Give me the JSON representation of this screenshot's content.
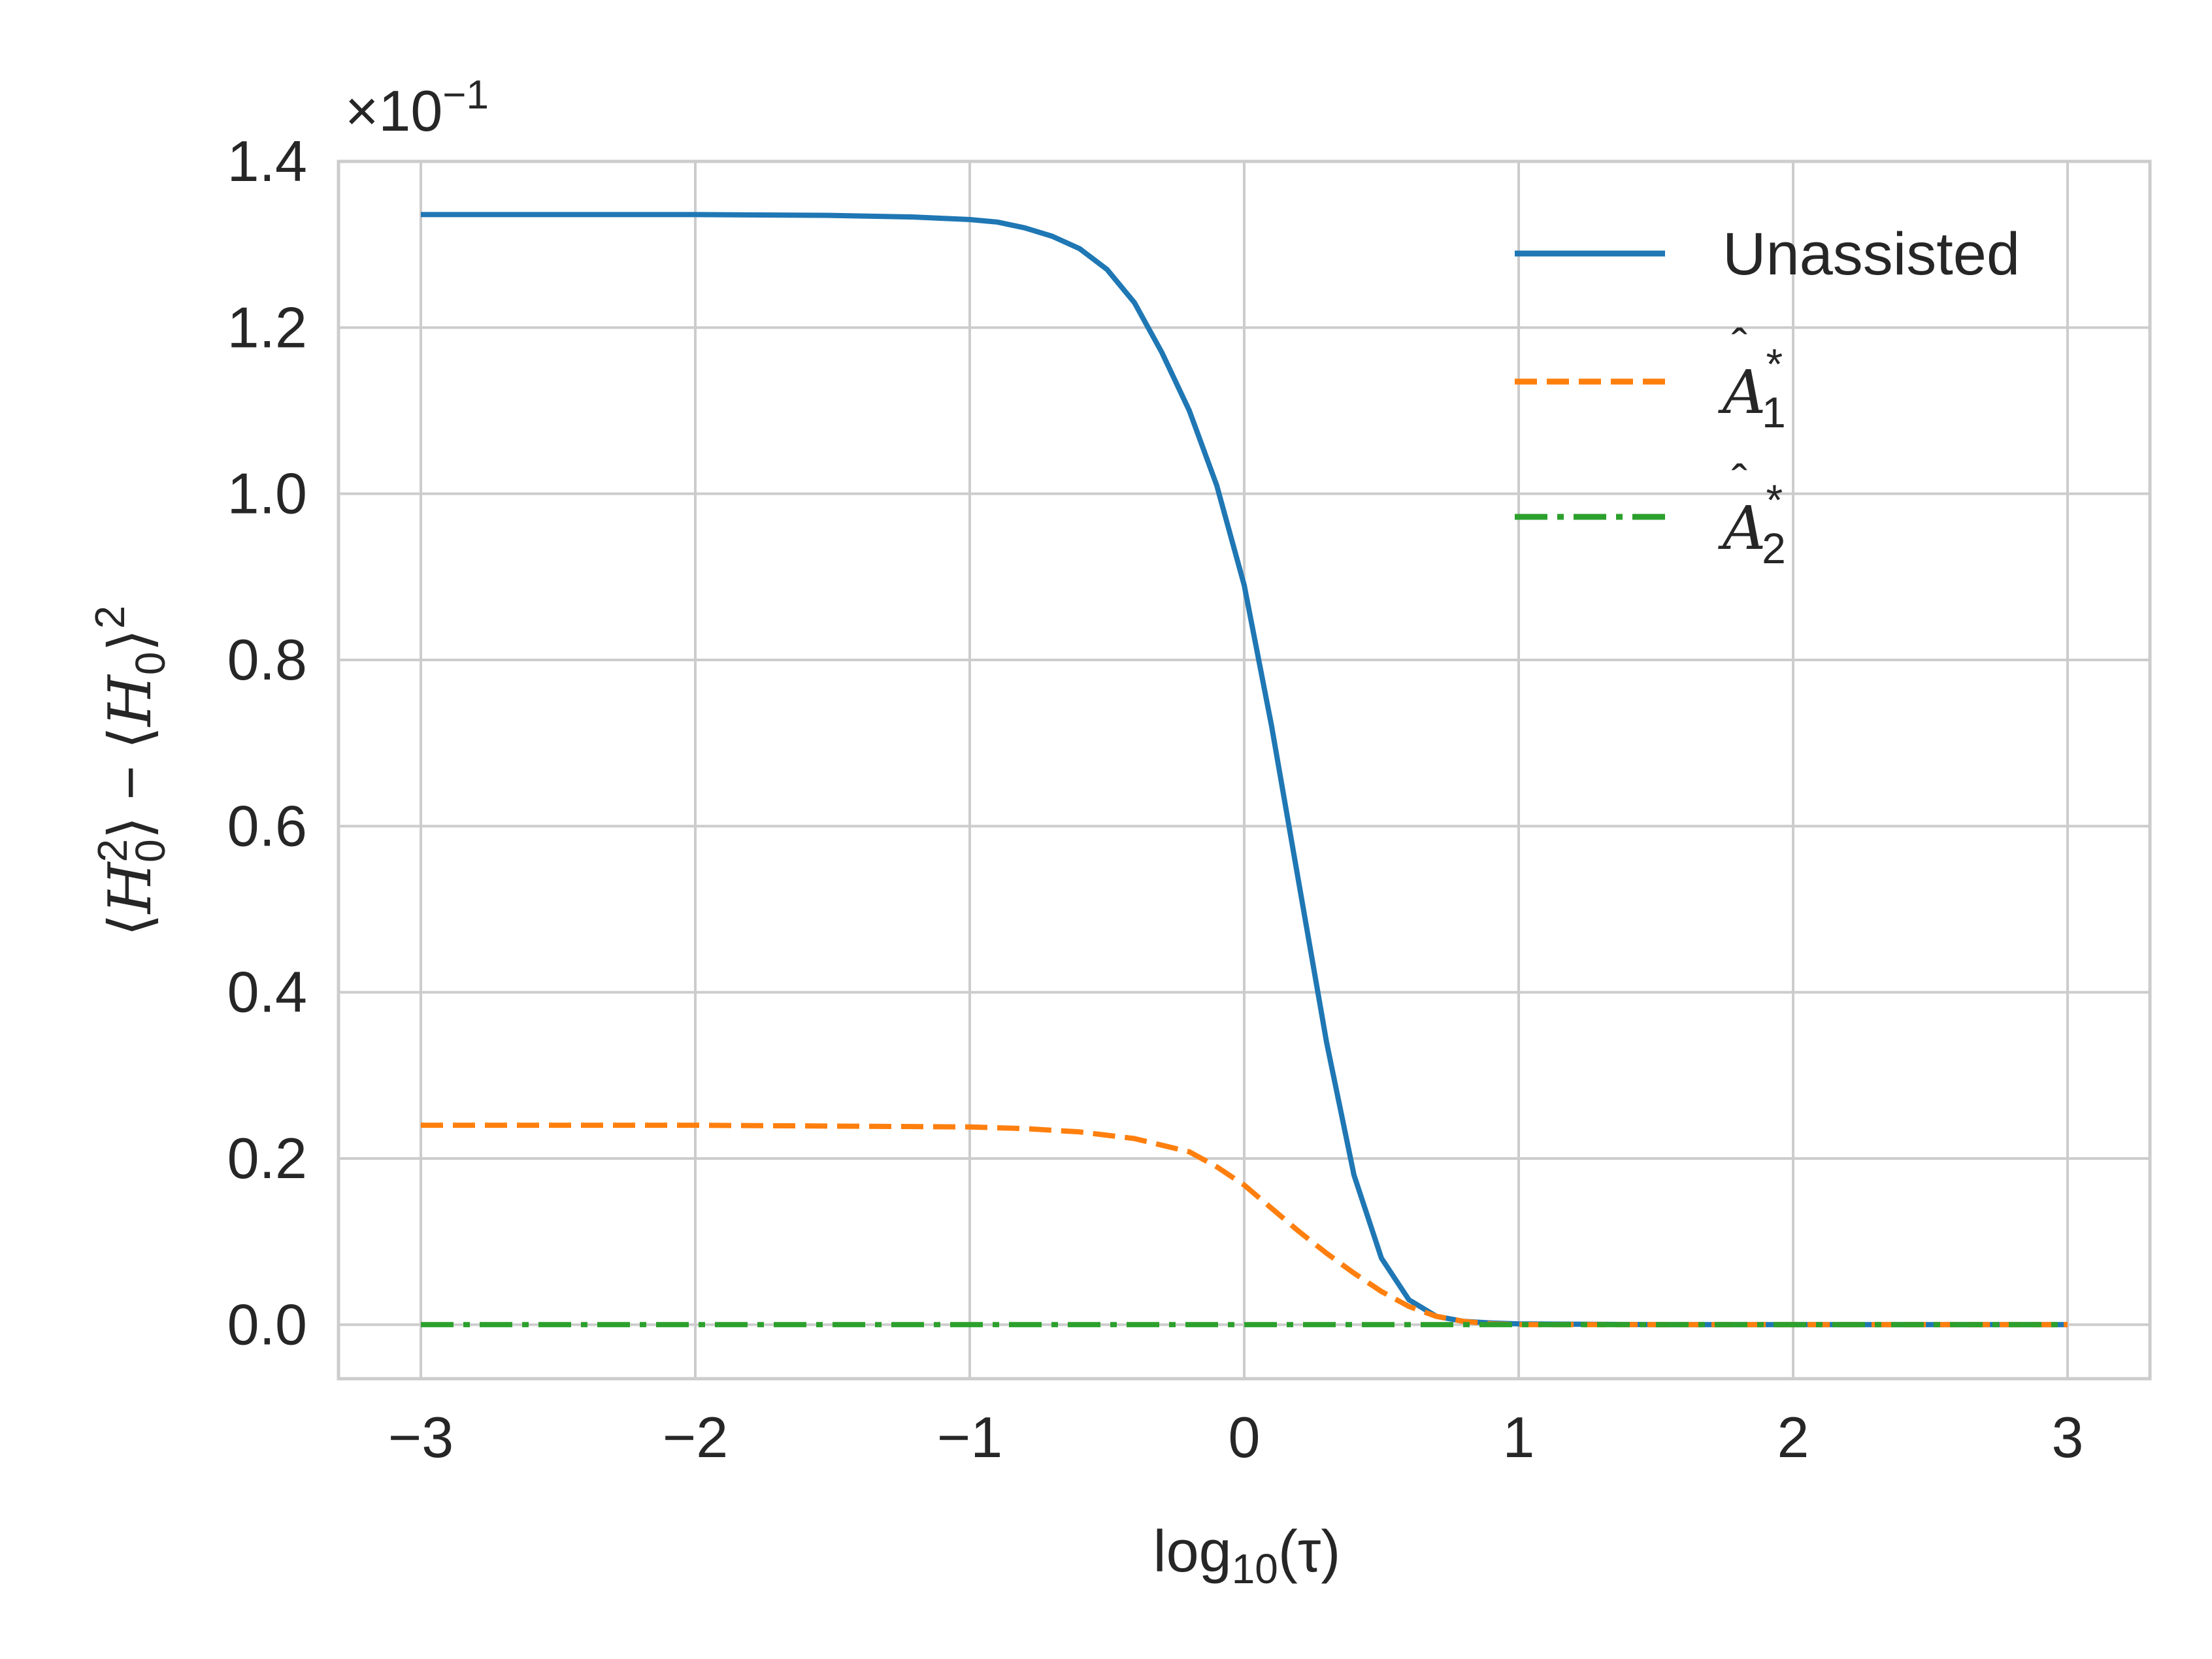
{
  "chart_data": {
    "type": "line",
    "title": "",
    "xlabel": "log10(τ)",
    "xlabel_parts": {
      "base": "log",
      "sub": "10",
      "arg": "(τ)"
    },
    "ylabel": "⟨H0²⟩ − ⟨H0⟩²",
    "ylabel_parts": {
      "open": "⟨",
      "sym": "H",
      "sub": "0",
      "sup": "2",
      "mid": "⟩ − ⟨",
      "sym2": "H",
      "sub2": "0",
      "close": "⟩",
      "sup2": "2"
    },
    "offset_text": "×10⁻¹",
    "offset_parts": {
      "times": "×10",
      "exp": "−1"
    },
    "xlim": [
      -3.3,
      3.3
    ],
    "ylim": [
      -0.065,
      1.4
    ],
    "x_ticks": [
      -3,
      -2,
      -1,
      0,
      1,
      2,
      3
    ],
    "x_tick_labels": [
      "−3",
      "−2",
      "−1",
      "0",
      "1",
      "2",
      "3"
    ],
    "y_ticks": [
      0.0,
      0.2,
      0.4,
      0.6,
      0.8,
      1.0,
      1.2,
      1.4
    ],
    "y_tick_labels": [
      "0.0",
      "0.2",
      "0.4",
      "0.6",
      "0.8",
      "1.0",
      "1.2",
      "1.4"
    ],
    "grid": true,
    "legend_position": "top-right",
    "series": [
      {
        "name": "Unassisted",
        "color": "#1f77b4",
        "style": "solid",
        "x": [
          -3.0,
          -2.5,
          -2.0,
          -1.5,
          -1.2,
          -1.0,
          -0.9,
          -0.8,
          -0.7,
          -0.6,
          -0.5,
          -0.4,
          -0.3,
          -0.2,
          -0.1,
          0.0,
          0.1,
          0.2,
          0.3,
          0.4,
          0.5,
          0.6,
          0.7,
          0.8,
          0.9,
          1.0,
          1.5,
          2.0,
          2.5,
          3.0
        ],
        "y": [
          1.336,
          1.336,
          1.336,
          1.335,
          1.333,
          1.33,
          1.327,
          1.32,
          1.31,
          1.295,
          1.27,
          1.23,
          1.17,
          1.1,
          1.01,
          0.89,
          0.72,
          0.53,
          0.34,
          0.18,
          0.08,
          0.03,
          0.01,
          0.004,
          0.002,
          0.001,
          0.0,
          0.0,
          0.0,
          0.0
        ]
      },
      {
        "name": "Â₁*",
        "label_parts": {
          "sym": "A",
          "sub": "1",
          "sup": "*"
        },
        "color": "#ff7f0e",
        "style": "dashed",
        "x": [
          -3.0,
          -2.5,
          -2.0,
          -1.5,
          -1.0,
          -0.8,
          -0.6,
          -0.4,
          -0.2,
          -0.1,
          0.0,
          0.1,
          0.2,
          0.3,
          0.4,
          0.5,
          0.6,
          0.7,
          0.8,
          0.9,
          1.0,
          1.5,
          2.0,
          2.5,
          3.0
        ],
        "y": [
          0.24,
          0.24,
          0.24,
          0.239,
          0.238,
          0.236,
          0.232,
          0.224,
          0.208,
          0.19,
          0.168,
          0.14,
          0.112,
          0.086,
          0.062,
          0.04,
          0.022,
          0.01,
          0.004,
          0.001,
          0.0,
          0.0,
          0.0,
          0.0,
          0.0
        ]
      },
      {
        "name": "Â₂*",
        "label_parts": {
          "sym": "A",
          "sub": "2",
          "sup": "*"
        },
        "color": "#2ca02c",
        "style": "dashdot",
        "x": [
          -3.0,
          -2.0,
          -1.0,
          0.0,
          1.0,
          2.0,
          3.0
        ],
        "y": [
          0.0,
          0.0,
          0.0,
          0.0,
          0.0,
          0.0,
          0.0
        ]
      }
    ]
  }
}
